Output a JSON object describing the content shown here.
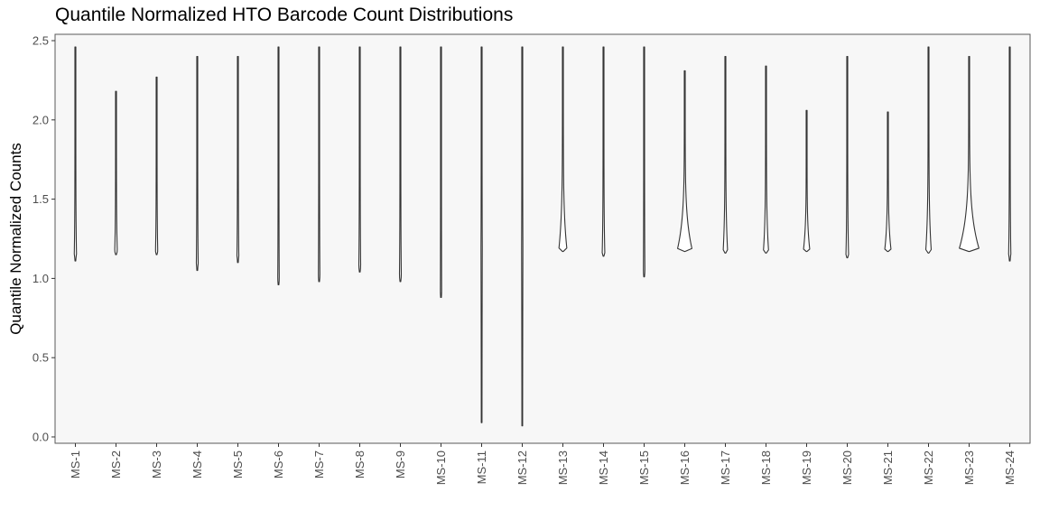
{
  "chart_data": {
    "type": "violin",
    "title": "Quantile Normalized HTO Barcode Count Distributions",
    "xlabel": "",
    "ylabel": "Quantile Normalized Counts",
    "ylim": [
      -0.04,
      2.54
    ],
    "yticks": [
      "0.0",
      "0.5",
      "1.0",
      "1.5",
      "2.0",
      "2.5"
    ],
    "grid": false,
    "panel_background": "#f7f7f7",
    "line_color": "#333333",
    "categories": [
      "MS-1",
      "MS-2",
      "MS-3",
      "MS-4",
      "MS-5",
      "MS-6",
      "MS-7",
      "MS-8",
      "MS-9",
      "MS-10",
      "MS-11",
      "MS-12",
      "MS-13",
      "MS-14",
      "MS-15",
      "MS-16",
      "MS-17",
      "MS-18",
      "MS-19",
      "MS-20",
      "MS-21",
      "MS-22",
      "MS-23",
      "MS-24"
    ],
    "series": [
      {
        "min": 1.11,
        "max": 2.46,
        "mode": 1.15,
        "spread": 0.06
      },
      {
        "min": 1.15,
        "max": 2.18,
        "mode": 1.17,
        "spread": 0.07
      },
      {
        "min": 1.15,
        "max": 2.27,
        "mode": 1.17,
        "spread": 0.06
      },
      {
        "min": 1.05,
        "max": 2.4,
        "mode": 1.09,
        "spread": 0.05
      },
      {
        "min": 1.1,
        "max": 2.4,
        "mode": 1.14,
        "spread": 0.05
      },
      {
        "min": 0.96,
        "max": 2.46,
        "mode": 0.99,
        "spread": 0.04
      },
      {
        "min": 0.98,
        "max": 2.46,
        "mode": 1.01,
        "spread": 0.04
      },
      {
        "min": 1.04,
        "max": 2.46,
        "mode": 1.07,
        "spread": 0.05
      },
      {
        "min": 0.98,
        "max": 2.46,
        "mode": 1.01,
        "spread": 0.05
      },
      {
        "min": 0.88,
        "max": 2.46,
        "mode": 0.91,
        "spread": 0.03
      },
      {
        "min": 0.09,
        "max": 2.46,
        "mode": 1.2,
        "spread": 0.01
      },
      {
        "min": 0.07,
        "max": 2.46,
        "mode": 1.2,
        "spread": 0.01
      },
      {
        "min": 1.17,
        "max": 2.46,
        "mode": 1.18,
        "spread": 0.22
      },
      {
        "min": 1.14,
        "max": 2.46,
        "mode": 1.16,
        "spread": 0.07
      },
      {
        "min": 1.01,
        "max": 2.46,
        "mode": 1.04,
        "spread": 0.04
      },
      {
        "min": 1.17,
        "max": 2.31,
        "mode": 1.18,
        "spread": 0.4
      },
      {
        "min": 1.16,
        "max": 2.4,
        "mode": 1.17,
        "spread": 0.12
      },
      {
        "min": 1.16,
        "max": 2.34,
        "mode": 1.17,
        "spread": 0.14
      },
      {
        "min": 1.17,
        "max": 2.06,
        "mode": 1.18,
        "spread": 0.17
      },
      {
        "min": 1.13,
        "max": 2.4,
        "mode": 1.15,
        "spread": 0.07
      },
      {
        "min": 1.17,
        "max": 2.05,
        "mode": 1.18,
        "spread": 0.17
      },
      {
        "min": 1.16,
        "max": 2.46,
        "mode": 1.17,
        "spread": 0.15
      },
      {
        "min": 1.17,
        "max": 2.4,
        "mode": 1.18,
        "spread": 0.55
      },
      {
        "min": 1.11,
        "max": 2.46,
        "mode": 1.15,
        "spread": 0.06
      }
    ]
  }
}
